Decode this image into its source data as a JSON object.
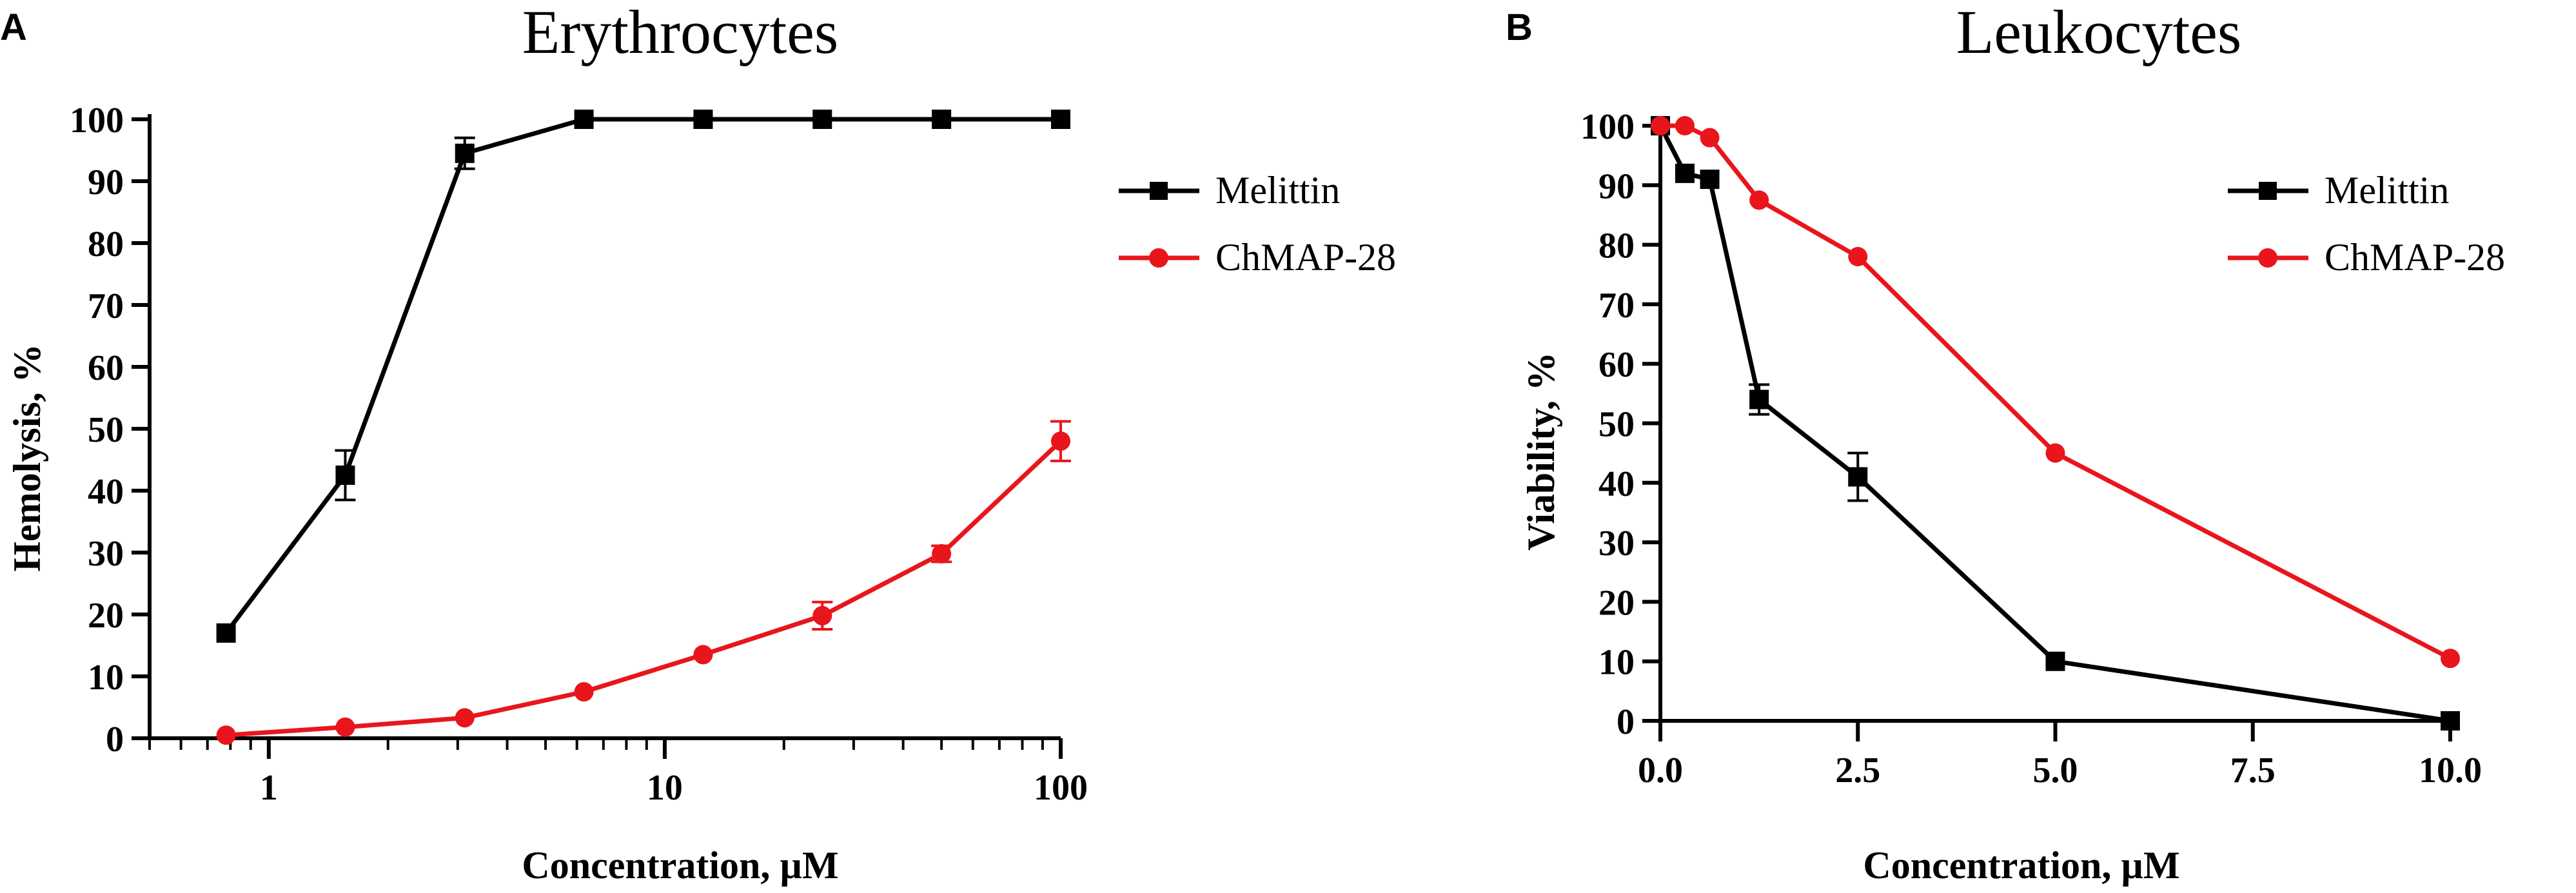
{
  "chart_data": [
    {
      "panel_label": "A",
      "type": "line",
      "title": "Erythrocytes",
      "xlabel": "Concentration, µM",
      "ylabel": "Hemolysis, %",
      "xscale": "log",
      "xlim": [
        0.5,
        100
      ],
      "ylim": [
        0,
        100
      ],
      "xticks": [
        1,
        10,
        100
      ],
      "xtick_labels": [
        "1",
        "10",
        "100"
      ],
      "yticks": [
        0,
        10,
        20,
        30,
        40,
        50,
        60,
        70,
        80,
        90,
        100
      ],
      "ytick_labels": [
        "0",
        "10",
        "20",
        "30",
        "40",
        "50",
        "60",
        "70",
        "80",
        "90",
        "100"
      ],
      "grid": false,
      "legend_position": "right",
      "series": [
        {
          "name": "Melittin",
          "color": "#000000",
          "marker": "square",
          "x": [
            0.78,
            1.56,
            3.125,
            6.25,
            12.5,
            25,
            50,
            100
          ],
          "y": [
            17,
            42.5,
            94.5,
            100,
            100,
            100,
            100,
            100
          ],
          "error": [
            0,
            4,
            2.5,
            0,
            0,
            0,
            0,
            0
          ]
        },
        {
          "name": "ChMAP-28",
          "color": "#e8161c",
          "marker": "circle",
          "x": [
            0.78,
            1.56,
            3.125,
            6.25,
            12.5,
            25,
            50,
            100
          ],
          "y": [
            0.5,
            1.8,
            3.3,
            7.5,
            13.5,
            19.8,
            29.8,
            48
          ],
          "error": [
            0,
            0,
            0,
            0,
            0,
            2.2,
            1.3,
            3.2
          ]
        }
      ]
    },
    {
      "panel_label": "B",
      "type": "line",
      "title": "Leukocytes",
      "xlabel": "Concentration, µM",
      "ylabel": "Viability, %",
      "xscale": "linear",
      "xlim": [
        0,
        10
      ],
      "ylim": [
        0,
        100
      ],
      "xticks": [
        0,
        2.5,
        5,
        7.5,
        10
      ],
      "xtick_labels": [
        "0.0",
        "2.5",
        "5.0",
        "7.5",
        "10.0"
      ],
      "yticks": [
        0,
        10,
        20,
        30,
        40,
        50,
        60,
        70,
        80,
        90,
        100
      ],
      "ytick_labels": [
        "0",
        "10",
        "20",
        "30",
        "40",
        "50",
        "60",
        "70",
        "80",
        "90",
        "100"
      ],
      "grid": false,
      "legend_position": "right",
      "series": [
        {
          "name": "Melittin",
          "color": "#000000",
          "marker": "square",
          "x": [
            0,
            0.31,
            0.625,
            1.25,
            2.5,
            5,
            10
          ],
          "y": [
            100,
            92,
            91,
            54,
            41,
            10,
            0
          ],
          "error": [
            0,
            0,
            0,
            2.5,
            4,
            0,
            0
          ]
        },
        {
          "name": "ChMAP-28",
          "color": "#e8161c",
          "marker": "circle",
          "x": [
            0,
            0.31,
            0.625,
            1.25,
            2.5,
            5,
            10
          ],
          "y": [
            100,
            100,
            98,
            87.5,
            78,
            45,
            10.5
          ],
          "error": [
            0,
            0,
            0,
            0,
            0,
            0,
            0
          ]
        }
      ]
    }
  ]
}
